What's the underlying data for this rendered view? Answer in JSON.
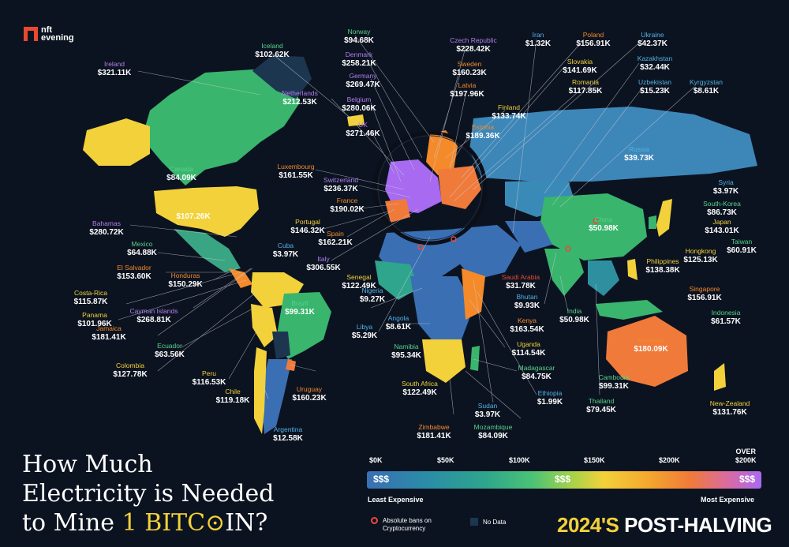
{
  "brand": {
    "logo_line1": "nft",
    "logo_line2": "evening"
  },
  "title": {
    "line1": "How Much",
    "line2": "Electricity is Needed",
    "line3_pre": "to Mine ",
    "line3_hl": "1 BITC",
    "line3_post": "IN?"
  },
  "badge": {
    "year": "2024'S",
    "text": "POST-HALVING"
  },
  "legend": {
    "ticks": [
      "$0K",
      "$50K",
      "$100K",
      "$150K",
      "$200K"
    ],
    "over_word": "OVER",
    "over_value": "$200K",
    "bar_low": "$$$",
    "bar_mid": "$$$",
    "bar_high": "$$$",
    "least": "Least Expensive",
    "most": "Most Expensive",
    "ban_label": "Absolute bans on Cryptocurrency",
    "nodata_label": "No Data"
  },
  "map_colors": {
    "no_data": "#1d3650",
    "cheapest": "#3a6fb4",
    "low": "#2ea58c",
    "mid": "#4cc276",
    "yellow": "#f2d13a",
    "orange": "#f07a3a",
    "expensive": "#a76af0",
    "ocean": "#0c1320"
  },
  "countries": [
    {
      "name": "Ireland",
      "value": "$321.11K",
      "color": "purple"
    },
    {
      "name": "Iceland",
      "value": "$102.62K",
      "color": "green"
    },
    {
      "name": "Norway",
      "value": "$94.68K",
      "color": "green"
    },
    {
      "name": "Denmark",
      "value": "$258.21K",
      "color": "purple"
    },
    {
      "name": "Germany",
      "value": "$269.47K",
      "color": "purple"
    },
    {
      "name": "Netherlands",
      "value": "$212.53K",
      "color": "purple"
    },
    {
      "name": "Belgium",
      "value": "$280.06K",
      "color": "purple"
    },
    {
      "name": "UK",
      "value": "$271.46K",
      "color": "purple"
    },
    {
      "name": "Luxembourg",
      "value": "$161.55K",
      "color": "orange"
    },
    {
      "name": "Switzerland",
      "value": "$236.37K",
      "color": "purple"
    },
    {
      "name": "France",
      "value": "$190.02K",
      "color": "orange"
    },
    {
      "name": "Portugal",
      "value": "$146.32K",
      "color": "yellow"
    },
    {
      "name": "Spain",
      "value": "$162.21K",
      "color": "orange"
    },
    {
      "name": "Italy",
      "value": "$306.55K",
      "color": "purple"
    },
    {
      "name": "Czech Republic",
      "value": "$228.42K",
      "color": "purple"
    },
    {
      "name": "Iran",
      "value": "$1.32K",
      "color": "blue"
    },
    {
      "name": "Poland",
      "value": "$156.91K",
      "color": "orange"
    },
    {
      "name": "Ukraine",
      "value": "$42.37K",
      "color": "blue"
    },
    {
      "name": "Sweden",
      "value": "$160.23K",
      "color": "orange"
    },
    {
      "name": "Slovakia",
      "value": "$141.69K",
      "color": "yellow"
    },
    {
      "name": "Kazakhstan",
      "value": "$32.44K",
      "color": "blue"
    },
    {
      "name": "Latvia",
      "value": "$197.96K",
      "color": "orange"
    },
    {
      "name": "Romania",
      "value": "$117.85K",
      "color": "yellow"
    },
    {
      "name": "Uzbekistan",
      "value": "$15.23K",
      "color": "blue"
    },
    {
      "name": "Kyrgyzstan",
      "value": "$8.61K",
      "color": "blue"
    },
    {
      "name": "Finland",
      "value": "$133.74K",
      "color": "yellow"
    },
    {
      "name": "Estonia",
      "value": "$189.36K",
      "color": "orange"
    },
    {
      "name": "Russia",
      "value": "$39.73K",
      "color": "blue"
    },
    {
      "name": "Syria",
      "value": "$3.97K",
      "color": "blue"
    },
    {
      "name": "South-Korea",
      "value": "$86.73K",
      "color": "green"
    },
    {
      "name": "Japan",
      "value": "$143.01K",
      "color": "yellow"
    },
    {
      "name": "China",
      "value": "$50.98K",
      "color": "green"
    },
    {
      "name": "Taiwan",
      "value": "$60.91K",
      "color": "green"
    },
    {
      "name": "Hongkong",
      "value": "$125.13K",
      "color": "yellow"
    },
    {
      "name": "Philippines",
      "value": "$138.38K",
      "color": "yellow"
    },
    {
      "name": "Singapore",
      "value": "$156.91K",
      "color": "orange"
    },
    {
      "name": "Indonesia",
      "value": "$61.57K",
      "color": "green"
    },
    {
      "name": "Australia",
      "value": "$180.09K",
      "color": "orange"
    },
    {
      "name": "New-Zealand",
      "value": "$131.76K",
      "color": "yellow"
    },
    {
      "name": "Canada",
      "value": "$84.09K",
      "color": "green"
    },
    {
      "name": "USA",
      "value": "$107.26K",
      "color": "yellow"
    },
    {
      "name": "Bahamas",
      "value": "$280.72K",
      "color": "purple"
    },
    {
      "name": "Mexico",
      "value": "$64.88K",
      "color": "green"
    },
    {
      "name": "Cuba",
      "value": "$3.97K",
      "color": "blue"
    },
    {
      "name": "El Salvador",
      "value": "$153.60K",
      "color": "orange"
    },
    {
      "name": "Honduras",
      "value": "$150.29K",
      "color": "orange"
    },
    {
      "name": "Costa-Rica",
      "value": "$115.87K",
      "color": "yellow"
    },
    {
      "name": "Panama",
      "value": "$101.96K",
      "color": "yellow"
    },
    {
      "name": "Cayman Islands",
      "value": "$268.81K",
      "color": "purple"
    },
    {
      "name": "Jamaica",
      "value": "$181.41K",
      "color": "orange"
    },
    {
      "name": "Ecuador",
      "value": "$63.56K",
      "color": "green"
    },
    {
      "name": "Colombia",
      "value": "$127.78K",
      "color": "yellow"
    },
    {
      "name": "Peru",
      "value": "$116.53K",
      "color": "yellow"
    },
    {
      "name": "Chile",
      "value": "$119.18K",
      "color": "yellow"
    },
    {
      "name": "Argentina",
      "value": "$12.58K",
      "color": "blue"
    },
    {
      "name": "Uruguay",
      "value": "$160.23K",
      "color": "orange"
    },
    {
      "name": "Brazil",
      "value": "$99.31K",
      "color": "green"
    },
    {
      "name": "Senegal",
      "value": "$122.49K",
      "color": "yellow"
    },
    {
      "name": "Nigeria",
      "value": "$9.27K",
      "color": "blue"
    },
    {
      "name": "Angola",
      "value": "$8.61K",
      "color": "blue"
    },
    {
      "name": "Libya",
      "value": "$5.29K",
      "color": "blue"
    },
    {
      "name": "Namibia",
      "value": "$95.34K",
      "color": "green"
    },
    {
      "name": "South Africa",
      "value": "$122.49K",
      "color": "yellow"
    },
    {
      "name": "Zimbabwe",
      "value": "$181.41K",
      "color": "orange"
    },
    {
      "name": "Mozambique",
      "value": "$84.09K",
      "color": "green"
    },
    {
      "name": "Sudan",
      "value": "$3.97K",
      "color": "blue"
    },
    {
      "name": "Ethiopia",
      "value": "$1.99K",
      "color": "blue"
    },
    {
      "name": "Madagascar",
      "value": "$84.75K",
      "color": "green"
    },
    {
      "name": "Uganda",
      "value": "$114.54K",
      "color": "yellow"
    },
    {
      "name": "Kenya",
      "value": "$163.54K",
      "color": "orange"
    },
    {
      "name": "Bhutan",
      "value": "$9.93K",
      "color": "blue"
    },
    {
      "name": "Saudi Arabia",
      "value": "$31.78K",
      "color": "red",
      "banned": true
    },
    {
      "name": "India",
      "value": "$50.98K",
      "color": "green"
    },
    {
      "name": "Cambodia",
      "value": "$99.31K",
      "color": "green"
    },
    {
      "name": "Thailand",
      "value": "$79.45K",
      "color": "green"
    }
  ]
}
